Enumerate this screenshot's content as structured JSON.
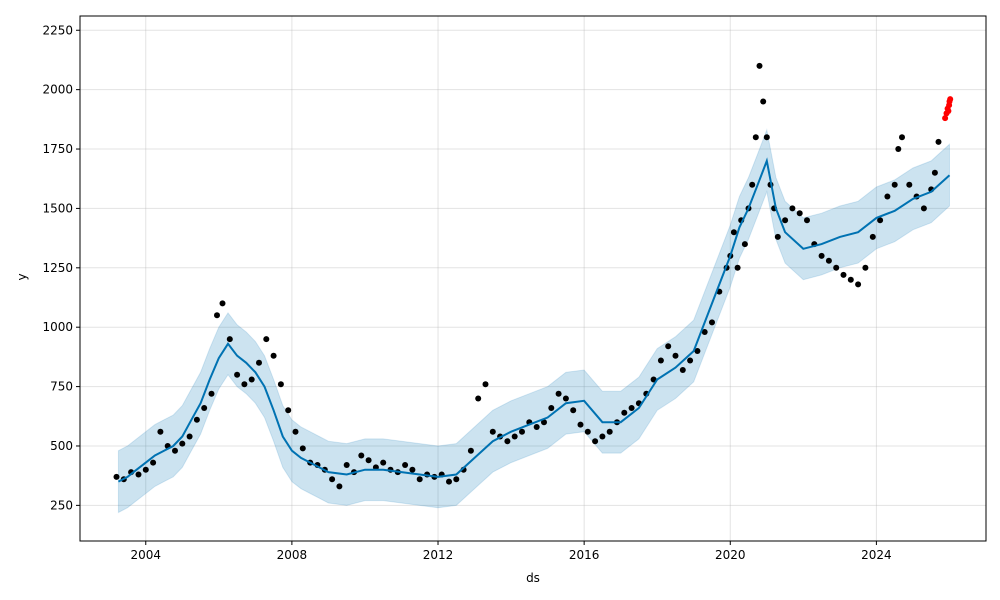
{
  "chart_data": {
    "type": "line",
    "xlabel": "ds",
    "ylabel": "y",
    "xlim": [
      2002.2,
      2027.0
    ],
    "ylim": [
      100,
      2310
    ],
    "x_ticks": [
      {
        "value": 2004,
        "label": "2004"
      },
      {
        "value": 2008,
        "label": "2008"
      },
      {
        "value": 2012,
        "label": "2012"
      },
      {
        "value": 2016,
        "label": "2016"
      },
      {
        "value": 2020,
        "label": "2020"
      },
      {
        "value": 2024,
        "label": "2024"
      }
    ],
    "y_ticks": [
      {
        "value": 250,
        "label": "250"
      },
      {
        "value": 500,
        "label": "500"
      },
      {
        "value": 750,
        "label": "750"
      },
      {
        "value": 1000,
        "label": "1000"
      },
      {
        "value": 1250,
        "label": "1250"
      },
      {
        "value": 1500,
        "label": "1500"
      },
      {
        "value": 1750,
        "label": "1750"
      },
      {
        "value": 2000,
        "label": "2000"
      },
      {
        "value": 2250,
        "label": "2250"
      }
    ],
    "grid": true,
    "colors": {
      "forecast_line": "#0072b2",
      "interval_fill": "#0072b2",
      "observed_points": "#000000",
      "recent_points": "#ff0000"
    },
    "series": [
      {
        "kind": "forecast_yhat",
        "x": [
          2003.25,
          2003.5,
          2003.75,
          2004.0,
          2004.25,
          2004.5,
          2004.75,
          2005.0,
          2005.25,
          2005.5,
          2005.75,
          2006.0,
          2006.25,
          2006.5,
          2006.75,
          2007.0,
          2007.25,
          2007.5,
          2007.75,
          2008.0,
          2008.25,
          2008.5,
          2008.75,
          2009.0,
          2009.5,
          2010.0,
          2010.5,
          2011.0,
          2011.5,
          2012.0,
          2012.5,
          2013.0,
          2013.5,
          2014.0,
          2014.5,
          2015.0,
          2015.5,
          2016.0,
          2016.5,
          2017.0,
          2017.5,
          2018.0,
          2018.5,
          2019.0,
          2019.5,
          2020.0,
          2020.25,
          2020.5,
          2020.75,
          2021.0,
          2021.25,
          2021.5,
          2022.0,
          2022.5,
          2023.0,
          2023.5,
          2024.0,
          2024.5,
          2025.0,
          2025.5,
          2026.0
        ],
        "y": [
          350,
          370,
          400,
          430,
          460,
          480,
          500,
          540,
          610,
          680,
          780,
          870,
          930,
          880,
          850,
          810,
          750,
          650,
          540,
          480,
          450,
          430,
          410,
          390,
          380,
          400,
          400,
          390,
          380,
          370,
          380,
          450,
          520,
          560,
          590,
          620,
          680,
          690,
          600,
          600,
          660,
          780,
          830,
          900,
          1100,
          1300,
          1420,
          1500,
          1600,
          1700,
          1500,
          1400,
          1330,
          1350,
          1380,
          1400,
          1460,
          1490,
          1540,
          1570,
          1640
        ]
      },
      {
        "kind": "interval_upper",
        "x": [
          2003.25,
          2003.5,
          2003.75,
          2004.0,
          2004.25,
          2004.5,
          2004.75,
          2005.0,
          2005.25,
          2005.5,
          2005.75,
          2006.0,
          2006.25,
          2006.5,
          2006.75,
          2007.0,
          2007.25,
          2007.5,
          2007.75,
          2008.0,
          2008.25,
          2008.5,
          2008.75,
          2009.0,
          2009.5,
          2010.0,
          2010.5,
          2011.0,
          2011.5,
          2012.0,
          2012.5,
          2013.0,
          2013.5,
          2014.0,
          2014.5,
          2015.0,
          2015.5,
          2016.0,
          2016.5,
          2017.0,
          2017.5,
          2018.0,
          2018.5,
          2019.0,
          2019.5,
          2020.0,
          2020.25,
          2020.5,
          2020.75,
          2021.0,
          2021.25,
          2021.5,
          2022.0,
          2022.5,
          2023.0,
          2023.5,
          2024.0,
          2024.5,
          2025.0,
          2025.5,
          2026.0
        ],
        "y": [
          480,
          500,
          530,
          560,
          590,
          610,
          630,
          670,
          740,
          810,
          910,
          1000,
          1060,
          1010,
          980,
          940,
          880,
          780,
          670,
          610,
          580,
          560,
          540,
          520,
          510,
          530,
          530,
          520,
          510,
          500,
          510,
          580,
          650,
          690,
          720,
          750,
          810,
          820,
          730,
          730,
          790,
          910,
          960,
          1030,
          1230,
          1430,
          1550,
          1630,
          1730,
          1830,
          1630,
          1530,
          1460,
          1480,
          1510,
          1530,
          1590,
          1620,
          1670,
          1700,
          1770
        ]
      },
      {
        "kind": "interval_lower",
        "x": [
          2003.25,
          2003.5,
          2003.75,
          2004.0,
          2004.25,
          2004.5,
          2004.75,
          2005.0,
          2005.25,
          2005.5,
          2005.75,
          2006.0,
          2006.25,
          2006.5,
          2006.75,
          2007.0,
          2007.25,
          2007.5,
          2007.75,
          2008.0,
          2008.25,
          2008.5,
          2008.75,
          2009.0,
          2009.5,
          2010.0,
          2010.5,
          2011.0,
          2011.5,
          2012.0,
          2012.5,
          2013.0,
          2013.5,
          2014.0,
          2014.5,
          2015.0,
          2015.5,
          2016.0,
          2016.5,
          2017.0,
          2017.5,
          2018.0,
          2018.5,
          2019.0,
          2019.5,
          2020.0,
          2020.25,
          2020.5,
          2020.75,
          2021.0,
          2021.25,
          2021.5,
          2022.0,
          2022.5,
          2023.0,
          2023.5,
          2024.0,
          2024.5,
          2025.0,
          2025.5,
          2026.0
        ],
        "y": [
          220,
          240,
          270,
          300,
          330,
          350,
          370,
          410,
          480,
          550,
          650,
          740,
          800,
          750,
          720,
          680,
          620,
          520,
          410,
          350,
          320,
          300,
          280,
          260,
          250,
          270,
          270,
          260,
          250,
          240,
          250,
          320,
          390,
          430,
          460,
          490,
          550,
          560,
          470,
          470,
          530,
          650,
          700,
          770,
          970,
          1170,
          1290,
          1370,
          1470,
          1570,
          1370,
          1270,
          1200,
          1220,
          1250,
          1270,
          1330,
          1360,
          1410,
          1440,
          1510
        ]
      },
      {
        "kind": "observed",
        "x": [
          2003.2,
          2003.4,
          2003.6,
          2003.8,
          2004.0,
          2004.2,
          2004.4,
          2004.6,
          2004.8,
          2005.0,
          2005.2,
          2005.4,
          2005.6,
          2005.8,
          2005.95,
          2006.1,
          2006.3,
          2006.5,
          2006.7,
          2006.9,
          2007.1,
          2007.3,
          2007.5,
          2007.7,
          2007.9,
          2008.1,
          2008.3,
          2008.5,
          2008.7,
          2008.9,
          2009.1,
          2009.3,
          2009.5,
          2009.7,
          2009.9,
          2010.1,
          2010.3,
          2010.5,
          2010.7,
          2010.9,
          2011.1,
          2011.3,
          2011.5,
          2011.7,
          2011.9,
          2012.1,
          2012.3,
          2012.5,
          2012.7,
          2012.9,
          2013.1,
          2013.3,
          2013.5,
          2013.7,
          2013.9,
          2014.1,
          2014.3,
          2014.5,
          2014.7,
          2014.9,
          2015.1,
          2015.3,
          2015.5,
          2015.7,
          2015.9,
          2016.1,
          2016.3,
          2016.5,
          2016.7,
          2016.9,
          2017.1,
          2017.3,
          2017.5,
          2017.7,
          2017.9,
          2018.1,
          2018.3,
          2018.5,
          2018.7,
          2018.9,
          2019.1,
          2019.3,
          2019.5,
          2019.7,
          2019.9,
          2020.0,
          2020.1,
          2020.2,
          2020.3,
          2020.4,
          2020.5,
          2020.6,
          2020.7,
          2020.8,
          2020.9,
          2021.0,
          2021.1,
          2021.2,
          2021.3,
          2021.5,
          2021.7,
          2021.9,
          2022.1,
          2022.3,
          2022.5,
          2022.7,
          2022.9,
          2023.1,
          2023.3,
          2023.5,
          2023.7,
          2023.9,
          2024.1,
          2024.3,
          2024.5,
          2024.6,
          2024.7,
          2024.9,
          2025.1,
          2025.3,
          2025.5,
          2025.6,
          2025.7
        ],
        "y": [
          370,
          360,
          390,
          380,
          400,
          430,
          560,
          500,
          480,
          510,
          540,
          610,
          660,
          720,
          1050,
          1100,
          950,
          800,
          760,
          780,
          850,
          950,
          880,
          760,
          650,
          560,
          490,
          430,
          420,
          400,
          360,
          330,
          420,
          390,
          460,
          440,
          410,
          430,
          400,
          390,
          420,
          400,
          360,
          380,
          370,
          380,
          350,
          360,
          400,
          480,
          700,
          760,
          560,
          540,
          520,
          540,
          560,
          600,
          580,
          600,
          660,
          720,
          700,
          650,
          590,
          560,
          520,
          540,
          560,
          600,
          640,
          660,
          680,
          720,
          780,
          860,
          920,
          880,
          820,
          860,
          900,
          980,
          1020,
          1150,
          1250,
          1300,
          1400,
          1250,
          1450,
          1350,
          1500,
          1600,
          1800,
          2100,
          1950,
          1800,
          1600,
          1500,
          1380,
          1450,
          1500,
          1480,
          1450,
          1350,
          1300,
          1280,
          1250,
          1220,
          1200,
          1180,
          1250,
          1380,
          1450,
          1550,
          1600,
          1750,
          1800,
          1600,
          1550,
          1500,
          1580,
          1650,
          1780
        ]
      },
      {
        "kind": "recent_observed",
        "x": [
          2025.88,
          2025.92,
          2025.95,
          2025.97,
          2025.99,
          2026.0,
          2026.02
        ],
        "y": [
          1880,
          1900,
          1920,
          1910,
          1935,
          1950,
          1960
        ]
      }
    ]
  }
}
